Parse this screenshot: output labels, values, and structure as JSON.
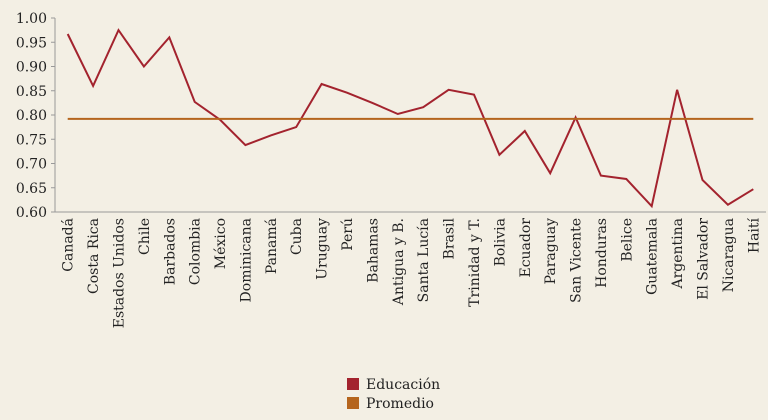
{
  "chart_data": {
    "type": "line",
    "categories": [
      "Canadá",
      "Costa Rica",
      "Estados Unidos",
      "Chile",
      "Barbados",
      "Colombia",
      "México",
      "Dominicana",
      "Panamá",
      "Cuba",
      "Uruguay",
      "Perú",
      "Bahamas",
      "Antigua y B.",
      "Santa Lucía",
      "Brasil",
      "Trinidad y T.",
      "Bolivia",
      "Ecuador",
      "Paraguay",
      "San Vicente",
      "Honduras",
      "Belice",
      "Guatemala",
      "Argentina",
      "El Salvador",
      "Nicaragua",
      "Haití"
    ],
    "series": [
      {
        "name": "Educación",
        "color": "#a3232e",
        "values": [
          0.967,
          0.86,
          0.975,
          0.9,
          0.96,
          0.827,
          0.79,
          0.738,
          0.758,
          0.775,
          0.864,
          0.846,
          0.825,
          0.802,
          0.816,
          0.852,
          0.842,
          0.718,
          0.767,
          0.68,
          0.795,
          0.675,
          0.668,
          0.612,
          0.852,
          0.666,
          0.615,
          0.647
        ]
      },
      {
        "name": "Promedio",
        "color": "#b5651d",
        "values": [
          0.792,
          0.792,
          0.792,
          0.792,
          0.792,
          0.792,
          0.792,
          0.792,
          0.792,
          0.792,
          0.792,
          0.792,
          0.792,
          0.792,
          0.792,
          0.792,
          0.792,
          0.792,
          0.792,
          0.792,
          0.792,
          0.792,
          0.792,
          0.792,
          0.792,
          0.792,
          0.792,
          0.792
        ]
      }
    ],
    "ylim": [
      0.6,
      1.0
    ],
    "yticks": [
      {
        "value": 0.6,
        "label": "0.60"
      },
      0.65,
      {
        "value": 0.7,
        "label": "0.70"
      },
      0.75,
      {
        "value": 0.8,
        "label": "0.80"
      },
      0.85,
      {
        "value": 0.9,
        "label": "0.90"
      },
      0.95,
      {
        "value": 1.0,
        "label": "1.00"
      }
    ],
    "legend": "bottom"
  }
}
